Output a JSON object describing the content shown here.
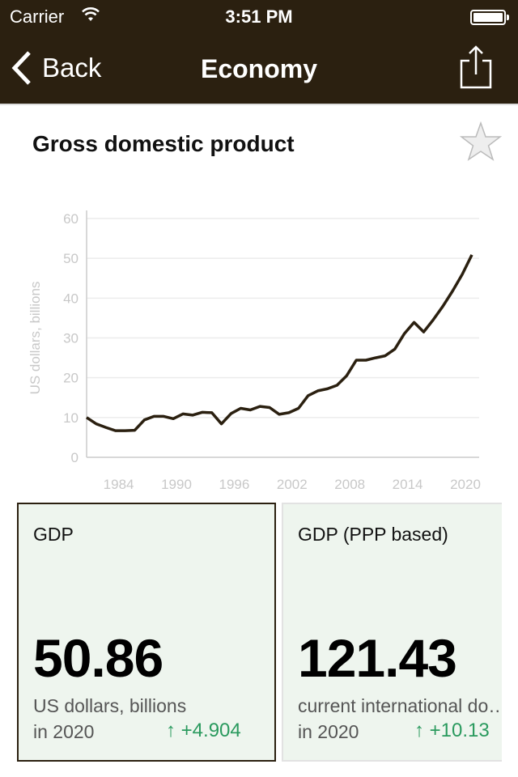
{
  "status_bar": {
    "carrier": "Carrier",
    "time": "3:51 PM",
    "battery_level": 1.0
  },
  "nav": {
    "back_label": "Back",
    "title": "Economy",
    "share_icon": "share-icon"
  },
  "header": {
    "title": "Gross domestic product",
    "favorite_icon": "star-outline-icon"
  },
  "chart_data": {
    "type": "line",
    "ylabel": "US dollars, billions",
    "ylim": [
      0,
      60
    ],
    "yticks": [
      "0",
      "10",
      "20",
      "30",
      "40",
      "50",
      "60"
    ],
    "xticks": [
      "1984",
      "1990",
      "1996",
      "2002",
      "2008",
      "2014",
      "2020"
    ],
    "grid": true,
    "line_color": "#2b2010",
    "x": [
      1980,
      1981,
      1982,
      1983,
      1984,
      1985,
      1986,
      1987,
      1988,
      1989,
      1990,
      1991,
      1992,
      1993,
      1994,
      1995,
      1996,
      1997,
      1998,
      1999,
      2000,
      2001,
      2002,
      2003,
      2004,
      2005,
      2006,
      2007,
      2008,
      2009,
      2010,
      2011,
      2012,
      2013,
      2014,
      2015,
      2016,
      2017,
      2018,
      2019,
      2020
    ],
    "values": [
      10.0,
      8.4,
      7.5,
      6.7,
      6.7,
      6.8,
      9.4,
      10.3,
      10.3,
      9.7,
      10.9,
      10.6,
      11.3,
      11.2,
      8.4,
      11.0,
      12.3,
      11.9,
      12.8,
      12.5,
      10.8,
      11.2,
      12.3,
      15.5,
      16.7,
      17.2,
      18.1,
      20.5,
      24.4,
      24.4,
      25.0,
      25.5,
      27.2,
      31.1,
      33.9,
      31.5,
      34.6,
      38.0,
      41.8,
      45.96,
      50.86
    ]
  },
  "cards": [
    {
      "label": "GDP",
      "value": "50.86",
      "unit": "US dollars, billions",
      "year": "in 2020",
      "delta": "↑  +4.904",
      "selected": true
    },
    {
      "label": "GDP (PPP based)",
      "value": "121.43",
      "unit": "current international dollar",
      "year": "in 2020",
      "delta": "↑  +10.13",
      "selected": false
    }
  ],
  "colors": {
    "bar": "#2b2010",
    "card_bg": "#eef5ee",
    "positive": "#2a9a5e"
  }
}
